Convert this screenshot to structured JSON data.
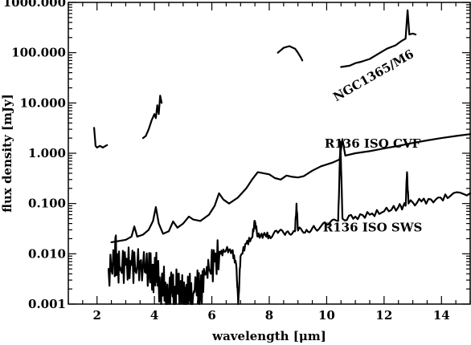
{
  "chart_data": {
    "type": "line",
    "xlabel": "wavelength [μm]",
    "ylabel": "flux density [mJy]",
    "xlim": [
      1,
      15
    ],
    "ylim": [
      0.001,
      1000
    ],
    "y_scale": "log",
    "x_ticks": [
      2,
      4,
      6,
      8,
      10,
      12,
      14
    ],
    "x_tick_labels": [
      "2",
      "4",
      "6",
      "8",
      "10",
      "12",
      "14"
    ],
    "y_ticks": [
      0.001,
      0.01,
      0.1,
      1,
      10,
      100,
      1000
    ],
    "y_tick_labels": [
      "0.001",
      "0.010",
      "0.100",
      "1.000",
      "10.000",
      "100.000",
      "1000.000"
    ],
    "grid": false,
    "annotations": [
      {
        "text": "NGC1365/M6",
        "x": 11.7,
        "y": 30,
        "rotate": -30
      },
      {
        "text": "R136 ISO CVF",
        "x": 11.6,
        "y": 1.3,
        "rotate": 0
      },
      {
        "text": "R136 ISO SWS",
        "x": 11.6,
        "y": 0.028,
        "rotate": 0
      }
    ],
    "series": [
      {
        "segments": [
          [
            [
              1.9,
              3.2
            ],
            [
              1.95,
              1.4
            ],
            [
              2.0,
              1.3
            ],
            [
              2.1,
              1.4
            ],
            [
              2.2,
              1.3
            ],
            [
              2.3,
              1.4
            ],
            [
              2.35,
              1.45
            ]
          ],
          [
            [
              3.6,
              2.0
            ],
            [
              3.7,
              2.2
            ],
            [
              3.8,
              3.0
            ],
            [
              3.9,
              4.5
            ],
            [
              4.0,
              6.0
            ],
            [
              4.05,
              5.0
            ],
            [
              4.1,
              9.0
            ],
            [
              4.15,
              6.0
            ],
            [
              4.2,
              14.0
            ],
            [
              4.25,
              10.0
            ]
          ],
          [
            [
              8.3,
              100
            ],
            [
              8.5,
              125
            ],
            [
              8.7,
              135
            ],
            [
              8.9,
              120
            ],
            [
              9.0,
              100
            ],
            [
              9.1,
              80
            ],
            [
              9.15,
              70
            ]
          ],
          [
            [
              10.5,
              52
            ],
            [
              10.8,
              55
            ],
            [
              11.0,
              62
            ],
            [
              11.2,
              66
            ],
            [
              11.5,
              75
            ],
            [
              11.8,
              95
            ],
            [
              12.1,
              120
            ],
            [
              12.4,
              140
            ],
            [
              12.6,
              170
            ],
            [
              12.75,
              190
            ],
            [
              12.82,
              700
            ],
            [
              12.88,
              230
            ],
            [
              13.0,
              240
            ],
            [
              13.1,
              230
            ]
          ]
        ]
      },
      {
        "segments": [
          [
            [
              2.5,
              0.017
            ],
            [
              3.0,
              0.019
            ],
            [
              3.2,
              0.022
            ],
            [
              3.3,
              0.035
            ],
            [
              3.4,
              0.022
            ],
            [
              3.6,
              0.024
            ],
            [
              3.8,
              0.03
            ],
            [
              3.95,
              0.045
            ],
            [
              4.05,
              0.085
            ],
            [
              4.15,
              0.04
            ],
            [
              4.3,
              0.025
            ],
            [
              4.5,
              0.028
            ],
            [
              4.65,
              0.044
            ],
            [
              4.8,
              0.033
            ],
            [
              5.0,
              0.04
            ],
            [
              5.2,
              0.055
            ],
            [
              5.35,
              0.048
            ],
            [
              5.6,
              0.045
            ],
            [
              5.9,
              0.06
            ],
            [
              6.1,
              0.09
            ],
            [
              6.25,
              0.16
            ],
            [
              6.4,
              0.12
            ],
            [
              6.6,
              0.1
            ],
            [
              6.9,
              0.13
            ],
            [
              7.2,
              0.2
            ],
            [
              7.4,
              0.3
            ],
            [
              7.6,
              0.42
            ],
            [
              7.8,
              0.4
            ],
            [
              8.0,
              0.38
            ],
            [
              8.2,
              0.32
            ],
            [
              8.4,
              0.3
            ],
            [
              8.6,
              0.36
            ],
            [
              8.8,
              0.34
            ],
            [
              9.0,
              0.33
            ],
            [
              9.2,
              0.35
            ],
            [
              9.5,
              0.45
            ],
            [
              9.8,
              0.55
            ],
            [
              10.2,
              0.65
            ],
            [
              10.45,
              0.75
            ],
            [
              10.55,
              1.9
            ],
            [
              10.65,
              0.9
            ],
            [
              11.0,
              1.0
            ],
            [
              11.5,
              1.1
            ],
            [
              12.0,
              1.25
            ],
            [
              12.5,
              1.4
            ],
            [
              13.0,
              1.6
            ],
            [
              13.5,
              1.8
            ],
            [
              14.0,
              2.0
            ],
            [
              14.5,
              2.2
            ],
            [
              15.0,
              2.4
            ]
          ]
        ]
      },
      {
        "segments": [
          [
            [
              2.4,
              0.005
            ],
            [
              2.6,
              0.006
            ],
            [
              2.65,
              0.012
            ],
            [
              2.7,
              0.005
            ],
            [
              2.8,
              0.0055
            ],
            [
              3.0,
              0.006
            ],
            [
              3.2,
              0.006
            ],
            [
              3.4,
              0.0055
            ],
            [
              3.6,
              0.0058
            ],
            [
              3.8,
              0.005
            ],
            [
              3.9,
              0.0045
            ],
            [
              4.0,
              0.0035
            ],
            [
              4.1,
              0.006
            ],
            [
              4.2,
              0.0012
            ],
            [
              4.3,
              0.004
            ],
            [
              4.4,
              0.001
            ],
            [
              4.5,
              0.0015
            ],
            [
              4.6,
              0.003
            ],
            [
              4.7,
              0.001
            ],
            [
              4.8,
              0.004
            ],
            [
              4.9,
              0.0012
            ],
            [
              5.0,
              0.002
            ],
            [
              5.1,
              0.001
            ],
            [
              5.2,
              0.0025
            ],
            [
              5.3,
              0.001
            ],
            [
              5.45,
              0.003
            ],
            [
              5.6,
              0.0015
            ],
            [
              5.75,
              0.004
            ],
            [
              5.9,
              0.005
            ],
            [
              6.1,
              0.007
            ],
            [
              6.3,
              0.01
            ],
            [
              6.5,
              0.012
            ],
            [
              6.7,
              0.0115
            ],
            [
              6.85,
              0.006
            ],
            [
              6.92,
              0.001
            ],
            [
              7.0,
              0.009
            ],
            [
              7.2,
              0.016
            ],
            [
              7.4,
              0.021
            ],
            [
              7.5,
              0.045
            ],
            [
              7.6,
              0.022
            ],
            [
              7.8,
              0.024
            ],
            [
              8.0,
              0.023
            ],
            [
              8.3,
              0.026
            ],
            [
              8.6,
              0.027
            ],
            [
              8.9,
              0.028
            ],
            [
              8.95,
              0.1
            ],
            [
              9.0,
              0.029
            ],
            [
              9.3,
              0.03
            ],
            [
              9.6,
              0.032
            ],
            [
              10.0,
              0.038
            ],
            [
              10.4,
              0.045
            ],
            [
              10.48,
              1.7
            ],
            [
              10.55,
              0.05
            ],
            [
              11.0,
              0.055
            ],
            [
              11.5,
              0.06
            ],
            [
              12.0,
              0.07
            ],
            [
              12.5,
              0.085
            ],
            [
              12.75,
              0.09
            ],
            [
              12.8,
              0.42
            ],
            [
              12.85,
              0.1
            ],
            [
              13.3,
              0.11
            ],
            [
              13.8,
              0.12
            ],
            [
              14.3,
              0.14
            ],
            [
              15.0,
              0.16
            ]
          ]
        ]
      }
    ]
  }
}
